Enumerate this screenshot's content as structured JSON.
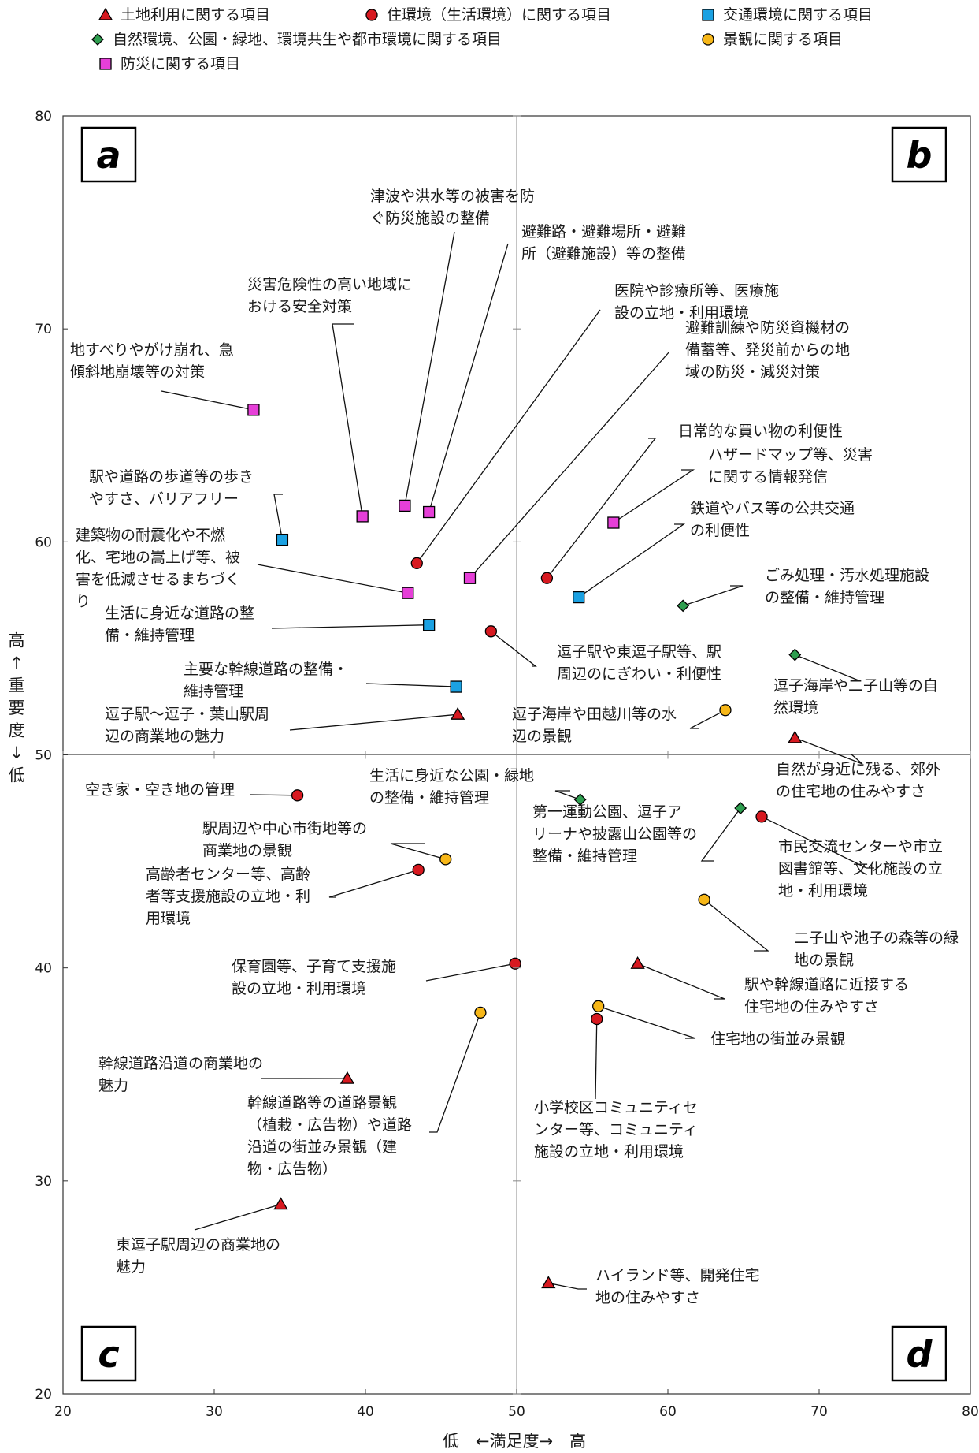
{
  "legend": [
    {
      "key": "land",
      "label": "土地利用に関する項目"
    },
    {
      "key": "living",
      "label": "住環境（生活環境）に関する項目"
    },
    {
      "key": "traffic",
      "label": "交通環境に関する項目"
    },
    {
      "key": "nature",
      "label": "自然環境、公園・緑地、環境共生や都市環境に関する項目"
    },
    {
      "key": "scenery",
      "label": "景観に関する項目"
    },
    {
      "key": "disaster",
      "label": "防災に関する項目"
    }
  ],
  "categories": {
    "land": {
      "shape": "triangle",
      "color": "#d71920"
    },
    "living": {
      "shape": "circle",
      "color": "#d71920"
    },
    "traffic": {
      "shape": "square",
      "color": "#1ba1e2"
    },
    "nature": {
      "shape": "diamond",
      "color": "#2e9e4f"
    },
    "scenery": {
      "shape": "circle",
      "color": "#f7b718"
    },
    "disaster": {
      "shape": "square",
      "color": "#e63fd8"
    }
  },
  "chart_data": {
    "type": "scatter",
    "xlim": [
      20,
      80
    ],
    "ylim": [
      20,
      80
    ],
    "xticks": [
      "20",
      "30",
      "40",
      "50",
      "60",
      "70",
      "80"
    ],
    "yticks": [
      "20",
      "30",
      "40",
      "50",
      "60",
      "70",
      "80"
    ],
    "xlabel": "低　←満足度→　高",
    "ylabel": "高↑重要度↓低",
    "midlines": {
      "x": 50,
      "y": 50
    },
    "quadrants": [
      "a",
      "b",
      "c",
      "d"
    ],
    "grid": false,
    "legend_position": "top",
    "points": [
      {
        "cat": "disaster",
        "x": 32.6,
        "y": 66.2,
        "label": [
          "地すべりやがけ崩れ、急",
          "傾斜地崩壊等の対策"
        ]
      },
      {
        "cat": "disaster",
        "x": 39.8,
        "y": 61.2,
        "label": [
          "災害危険性の高い地域に",
          "おける安全対策"
        ]
      },
      {
        "cat": "disaster",
        "x": 42.6,
        "y": 61.7,
        "label": [
          "津波や洪水等の被害を防",
          "ぐ防災施設の整備"
        ]
      },
      {
        "cat": "disaster",
        "x": 44.2,
        "y": 61.4,
        "label": [
          "避難路・避難場所・避難",
          "所（避難施設）等の整備"
        ]
      },
      {
        "cat": "living",
        "x": 43.4,
        "y": 59.0,
        "label": [
          "医院や診療所等、医療施",
          "設の立地・利用環境"
        ]
      },
      {
        "cat": "disaster",
        "x": 46.9,
        "y": 58.3,
        "label": [
          "避難訓練や防災資機材の",
          "備蓄等、発災前からの地",
          "域の防災・減災対策"
        ]
      },
      {
        "cat": "living",
        "x": 52.0,
        "y": 58.3,
        "label": [
          "日常的な買い物の利便性"
        ]
      },
      {
        "cat": "disaster",
        "x": 56.4,
        "y": 60.9,
        "label": [
          "ハザードマップ等、災害",
          "に関する情報発信"
        ]
      },
      {
        "cat": "traffic",
        "x": 34.5,
        "y": 60.1,
        "label": [
          "駅や道路の歩道等の歩き",
          "やすさ、バリアフリー"
        ]
      },
      {
        "cat": "traffic",
        "x": 54.1,
        "y": 57.4,
        "label": [
          "鉄道やバス等の公共交通",
          "の利便性"
        ]
      },
      {
        "cat": "disaster",
        "x": 42.8,
        "y": 57.6,
        "label": [
          "建築物の耐震化や不燃",
          "化、宅地の嵩上げ等、被",
          "害を低減させるまちづく",
          "り"
        ]
      },
      {
        "cat": "nature",
        "x": 61.0,
        "y": 57.0,
        "label": [
          "ごみ処理・汚水処理施設",
          "の整備・維持管理"
        ]
      },
      {
        "cat": "traffic",
        "x": 44.2,
        "y": 56.1,
        "label": [
          "生活に身近な道路の整",
          "備・維持管理"
        ]
      },
      {
        "cat": "living",
        "x": 48.3,
        "y": 55.8,
        "label": [
          "逗子駅や東逗子駅等、駅",
          "周辺のにぎわい・利便性"
        ]
      },
      {
        "cat": "nature",
        "x": 68.4,
        "y": 54.7,
        "label": [
          "逗子海岸や二子山等の自",
          "然環境"
        ]
      },
      {
        "cat": "traffic",
        "x": 46.0,
        "y": 53.2,
        "label": [
          "主要な幹線道路の整備・",
          "維持管理"
        ]
      },
      {
        "cat": "scenery",
        "x": 63.8,
        "y": 52.1,
        "label": [
          "逗子海岸や田越川等の水",
          "辺の景観"
        ]
      },
      {
        "cat": "land",
        "x": 46.1,
        "y": 51.9,
        "label": [
          "逗子駅～逗子・葉山駅周",
          "辺の商業地の魅力"
        ]
      },
      {
        "cat": "land",
        "x": 68.4,
        "y": 50.8,
        "label": [
          "自然が身近に残る、郊外",
          "の住宅地の住みやすさ"
        ]
      },
      {
        "cat": "living",
        "x": 35.5,
        "y": 48.1,
        "label": [
          "空き家・空き地の管理"
        ]
      },
      {
        "cat": "nature",
        "x": 54.2,
        "y": 47.9,
        "label": [
          "生活に身近な公園・緑地",
          "の整備・維持管理"
        ]
      },
      {
        "cat": "nature",
        "x": 64.8,
        "y": 47.5,
        "label": [
          "第一運動公園、逗子ア",
          "リーナや披露山公園等の",
          "整備・維持管理"
        ]
      },
      {
        "cat": "living",
        "x": 66.2,
        "y": 47.1,
        "label": [
          "市民交流センターや市立",
          "図書館等、文化施設の立",
          "地・利用環境"
        ]
      },
      {
        "cat": "scenery",
        "x": 45.3,
        "y": 45.1,
        "label": [
          "駅周辺や中心市街地等の",
          "商業地の景観"
        ]
      },
      {
        "cat": "living",
        "x": 43.5,
        "y": 44.6,
        "label": [
          "高齢者センター等、高齢",
          "者等支援施設の立地・利",
          "用環境"
        ]
      },
      {
        "cat": "scenery",
        "x": 62.4,
        "y": 43.2,
        "label": [
          "二子山や池子の森等の緑",
          "地の景観"
        ]
      },
      {
        "cat": "living",
        "x": 49.9,
        "y": 40.2,
        "label": [
          "保育園等、子育て支援施",
          "設の立地・利用環境"
        ]
      },
      {
        "cat": "land",
        "x": 58.0,
        "y": 40.2,
        "label": [
          "駅や幹線道路に近接する",
          "住宅地の住みやすさ"
        ]
      },
      {
        "cat": "scenery",
        "x": 55.4,
        "y": 38.2,
        "label": [
          "住宅地の街並み景観"
        ]
      },
      {
        "cat": "living",
        "x": 55.3,
        "y": 37.6,
        "label": [
          "小学校区コミュニティセ",
          "ンター等、コミュニティ",
          "施設の立地・利用環境"
        ]
      },
      {
        "cat": "scenery",
        "x": 47.6,
        "y": 37.9,
        "label": [
          "幹線道路等の道路景観",
          "（植栽・広告物）や道路",
          "沿道の街並み景観（建",
          "物・広告物）"
        ]
      },
      {
        "cat": "land",
        "x": 38.8,
        "y": 34.8,
        "label": [
          "幹線道路沿道の商業地の",
          "魅力"
        ]
      },
      {
        "cat": "land",
        "x": 34.4,
        "y": 28.9,
        "label": [
          "東逗子駅周辺の商業地の",
          "魅力"
        ]
      },
      {
        "cat": "land",
        "x": 52.1,
        "y": 25.2,
        "label": [
          "ハイランド等、開発住宅",
          "地の住みやすさ"
        ]
      }
    ]
  }
}
